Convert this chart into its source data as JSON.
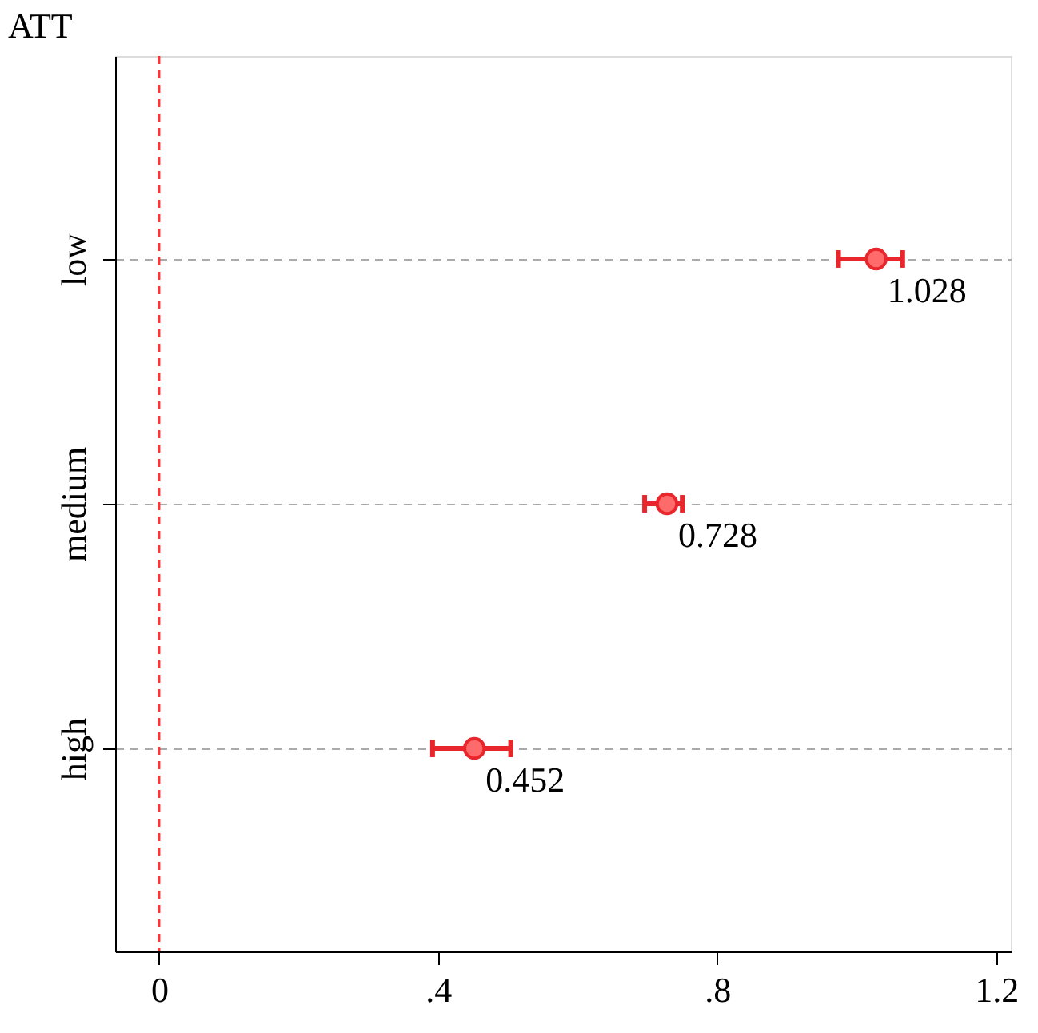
{
  "chart_data": {
    "type": "scatter",
    "orientation": "horizontal",
    "title": "ATT",
    "categories": [
      "low",
      "medium",
      "high"
    ],
    "series": [
      {
        "color": "#e8262b",
        "values": [
          1.028,
          0.728,
          0.452
        ],
        "errors": [
          [
            0.974,
            1.066
          ],
          [
            0.696,
            0.75
          ],
          [
            0.392,
            0.504
          ]
        ]
      }
    ],
    "xlim": [
      -0.063,
      1.221
    ],
    "xticks": [
      0,
      {
        "value": 0.4,
        "label": ".4"
      },
      {
        "value": 0.8,
        "label": ".8"
      },
      1.2
    ],
    "ref_lines": [
      {
        "axis": "x",
        "value": 0,
        "color": "#ff3333",
        "line_style": "dashed"
      }
    ],
    "grid": "y",
    "marker": "circle",
    "data_labels": true
  }
}
